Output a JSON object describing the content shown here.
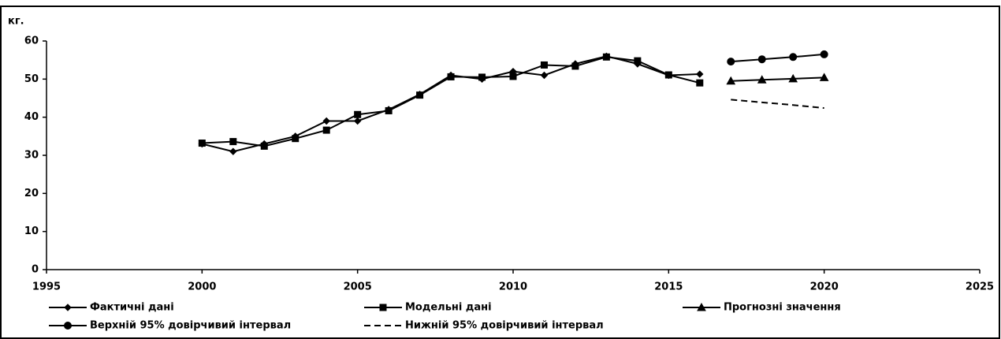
{
  "chart_data": {
    "type": "line",
    "y_label": "кг.",
    "x": [
      2000,
      2001,
      2002,
      2003,
      2004,
      2005,
      2006,
      2007,
      2008,
      2009,
      2010,
      2011,
      2012,
      2013,
      2014,
      2015,
      2016,
      2017,
      2018,
      2019,
      2020
    ],
    "series": [
      {
        "name": "Фактичні дані",
        "color": "#000000",
        "marker": "diamond",
        "values": [
          33,
          31,
          33,
          35,
          39,
          39,
          42,
          46,
          51,
          50,
          52,
          51,
          54,
          56,
          54,
          51,
          51.3,
          null,
          null,
          null,
          null
        ]
      },
      {
        "name": "Модельні дані",
        "color": "#000000",
        "marker": "square",
        "values": [
          33.2,
          33.6,
          32.4,
          34.4,
          36.6,
          40.7,
          41.7,
          45.8,
          50.6,
          50.5,
          50.7,
          53.7,
          53.4,
          55.8,
          54.8,
          51.1,
          49.0,
          null,
          null,
          null,
          null
        ]
      },
      {
        "name": "Прогнозні значення",
        "color": "#000000",
        "marker": "triangle",
        "values": [
          null,
          null,
          null,
          null,
          null,
          null,
          null,
          null,
          null,
          null,
          null,
          null,
          null,
          null,
          null,
          null,
          null,
          49.5,
          49.8,
          50.1,
          50.4
        ]
      },
      {
        "name": "Верхній 95% довірчивий інтервал",
        "color": "#000000",
        "marker": "circle",
        "values": [
          null,
          null,
          null,
          null,
          null,
          null,
          null,
          null,
          null,
          null,
          null,
          null,
          null,
          null,
          null,
          null,
          null,
          54.6,
          55.2,
          55.8,
          56.5
        ]
      },
      {
        "name": "Нижній 95% довірчивий інтервал",
        "color": "#000000",
        "dash": true,
        "values": [
          null,
          null,
          null,
          null,
          null,
          null,
          null,
          null,
          null,
          null,
          null,
          null,
          null,
          null,
          null,
          null,
          null,
          44.6,
          43.9,
          43.2,
          42.4
        ]
      }
    ],
    "xlim": [
      1995,
      2025
    ],
    "xticks": [
      1995,
      2000,
      2005,
      2010,
      2015,
      2020,
      2025
    ],
    "ylim": [
      0,
      60
    ],
    "yticks": [
      0,
      10,
      20,
      30,
      40,
      50,
      60
    ],
    "grid": false
  }
}
